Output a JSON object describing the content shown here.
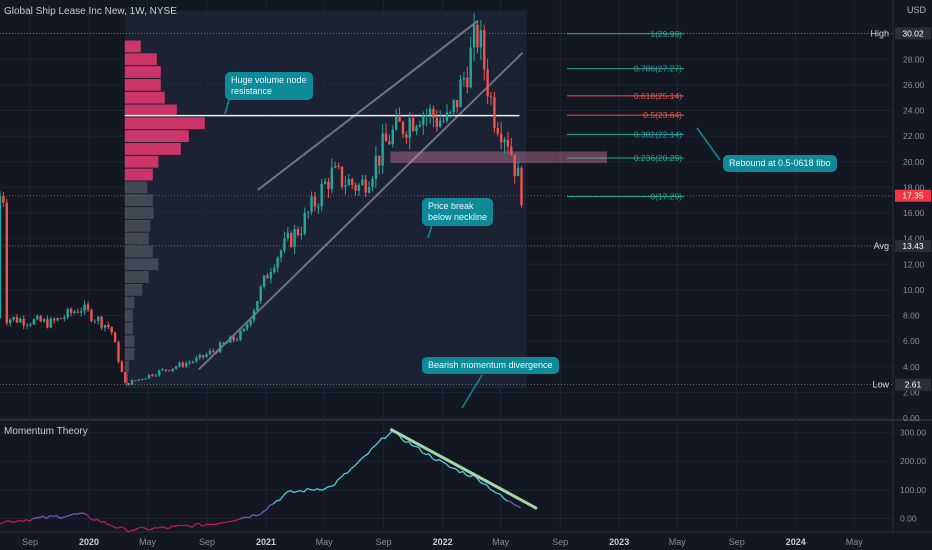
{
  "header": {
    "title": "Global Ship Lease Inc New, 1W, NYSE",
    "currency": "USD",
    "indicator_name": "Momentum Theory"
  },
  "annotations": {
    "volume_node": "Huge volume node\nresistance",
    "price_break": "Price break\nbelow neckline",
    "rebound": "Rebound at 0.5-0618 fibo",
    "divergence": "Bearish momentum divergence"
  },
  "colors": {
    "background": "#131722",
    "grid": "#1f2433",
    "up_candle": "#26a69a",
    "down_candle": "#ef5350",
    "volume_profile_value_area": "#d6376b",
    "volume_profile_outside": "#5d606b",
    "momentum_low": "#c2185b",
    "momentum_high": "#4dd0e1",
    "callout": "#0f8a98",
    "fib_up": "#26a69a",
    "fib_down": "#ef5350",
    "channel": "#6f7484",
    "divergence_line": "#a5d6a7",
    "price_marker": "#f23645"
  },
  "chart_data": [
    {
      "type": "candlestick",
      "title": "Global Ship Lease Inc New, 1W, NYSE",
      "ylabel": "USD",
      "ylim": [
        0,
        32
      ],
      "y_ticks": [
        "0.00",
        "2.00",
        "4.00",
        "6.00",
        "8.00",
        "10.00",
        "12.00",
        "14.00",
        "16.00",
        "18.00",
        "20.00",
        "22.00",
        "24.00",
        "26.00",
        "28.00",
        "30.00"
      ],
      "x_ticks": [
        "Sep",
        "2020",
        "May",
        "Sep",
        "2021",
        "May",
        "Sep",
        "2022",
        "May",
        "Sep",
        "2023",
        "May",
        "Sep",
        "2024",
        "May"
      ],
      "key_points": [
        {
          "date": "2019-07",
          "close": 7.8
        },
        {
          "date": "2019-10",
          "close": 7.4
        },
        {
          "date": "2019-12",
          "close": 8.6
        },
        {
          "date": "2020-02",
          "close": 7.0
        },
        {
          "date": "2020-03",
          "close": 2.61
        },
        {
          "date": "2020-05",
          "close": 3.5
        },
        {
          "date": "2020-08",
          "close": 4.6
        },
        {
          "date": "2020-11",
          "close": 6.6
        },
        {
          "date": "2021-01",
          "close": 12.3
        },
        {
          "date": "2021-03",
          "close": 15.0
        },
        {
          "date": "2021-05",
          "close": 19.0
        },
        {
          "date": "2021-07",
          "close": 18.0
        },
        {
          "date": "2021-09",
          "close": 22.0
        },
        {
          "date": "2021-11",
          "close": 24.0
        },
        {
          "date": "2022-01",
          "close": 23.0
        },
        {
          "date": "2022-03",
          "close": 30.02
        },
        {
          "date": "2022-04",
          "close": 24.0
        },
        {
          "date": "2022-05",
          "close": 22.0
        },
        {
          "date": "2022-06",
          "close": 17.35
        }
      ],
      "price_labels": [
        {
          "label": "High",
          "value": "30.02"
        },
        {
          "label": "",
          "value": "17.35"
        },
        {
          "label": "Avg",
          "value": "13.43"
        },
        {
          "label": "Low",
          "value": "2.61"
        }
      ],
      "fibonacci": [
        {
          "label": "1(29.99)",
          "value": 29.99,
          "dir": "up"
        },
        {
          "label": "0.786(27.27)",
          "value": 27.27,
          "dir": "up"
        },
        {
          "label": "0.618(25.14)",
          "value": 25.14,
          "dir": "down"
        },
        {
          "label": "0.5(23.64)",
          "value": 23.64,
          "dir": "down"
        },
        {
          "label": "0.382(22.14)",
          "value": 22.14,
          "dir": "up"
        },
        {
          "label": "0.236(20.29)",
          "value": 20.29,
          "dir": "up"
        },
        {
          "label": "0(17.29)",
          "value": 17.29,
          "dir": "up"
        }
      ],
      "neckline": 23.6,
      "volume_profile": {
        "price_levels": [
          29.0,
          28.0,
          27.0,
          26.0,
          25.0,
          24.0,
          23.0,
          22.0,
          21.0,
          20.0,
          19.0,
          18.0,
          17.0,
          16.0,
          15.0,
          14.0,
          13.0,
          12.0,
          11.0,
          10.0,
          9.0,
          8.0,
          7.0,
          6.0,
          5.0,
          4.0,
          3.0
        ],
        "relative_volume": [
          0.2,
          0.4,
          0.45,
          0.45,
          0.5,
          0.65,
          1.0,
          0.8,
          0.7,
          0.42,
          0.35,
          0.28,
          0.35,
          0.36,
          0.32,
          0.3,
          0.35,
          0.42,
          0.3,
          0.22,
          0.12,
          0.1,
          0.1,
          0.12,
          0.12,
          0.05,
          0.04
        ],
        "value_area": [
          29.0,
          19.0
        ]
      }
    },
    {
      "type": "line",
      "title": "Momentum Theory",
      "ylim": [
        -40,
        330
      ],
      "y_ticks": [
        "0.00",
        "100.00",
        "200.00",
        "300.00"
      ],
      "points": [
        {
          "date": "2019-06",
          "value": -15
        },
        {
          "date": "2019-12",
          "value": 15
        },
        {
          "date": "2020-03",
          "value": -40
        },
        {
          "date": "2020-06",
          "value": -32
        },
        {
          "date": "2020-09",
          "value": -18
        },
        {
          "date": "2020-12",
          "value": 15
        },
        {
          "date": "2021-02",
          "value": 90
        },
        {
          "date": "2021-05",
          "value": 110
        },
        {
          "date": "2021-07",
          "value": 200
        },
        {
          "date": "2021-09",
          "value": 305
        },
        {
          "date": "2021-11",
          "value": 240
        },
        {
          "date": "2022-01",
          "value": 180
        },
        {
          "date": "2022-03",
          "value": 140
        },
        {
          "date": "2022-05",
          "value": 60
        },
        {
          "date": "2022-06",
          "value": 40
        }
      ]
    }
  ]
}
